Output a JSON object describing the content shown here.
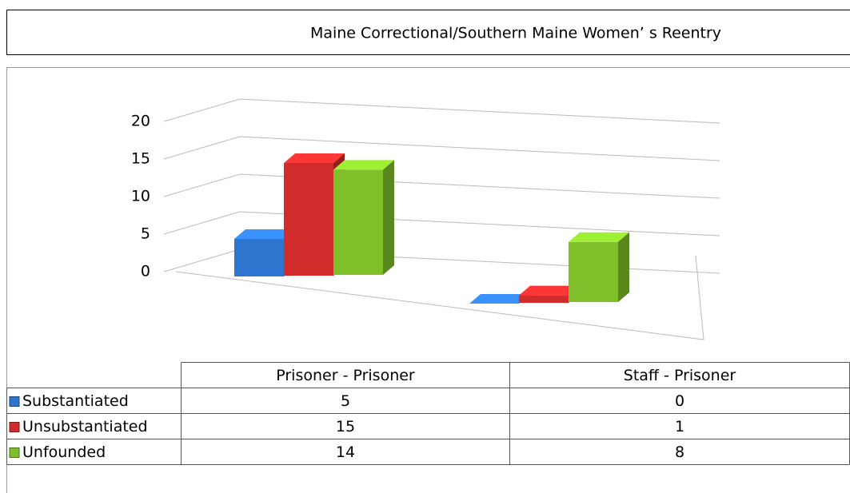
{
  "chart_data": {
    "type": "bar3d",
    "title": "Maine Correctional/Southern Maine Women’ s Reentry",
    "categories": [
      "Prisoner - Prisoner",
      "Staff - Prisoner"
    ],
    "series": [
      {
        "name": "Substantiated",
        "color": "#2f75d0",
        "values": [
          5,
          0
        ]
      },
      {
        "name": "Unsubstantiated",
        "color": "#d12b2b",
        "values": [
          15,
          1
        ]
      },
      {
        "name": "Unfounded",
        "color": "#7fbf2a",
        "values": [
          14,
          8
        ]
      }
    ],
    "ylim": [
      0,
      20
    ],
    "yticks": [
      0,
      5,
      10,
      15,
      20
    ],
    "grid": true
  }
}
